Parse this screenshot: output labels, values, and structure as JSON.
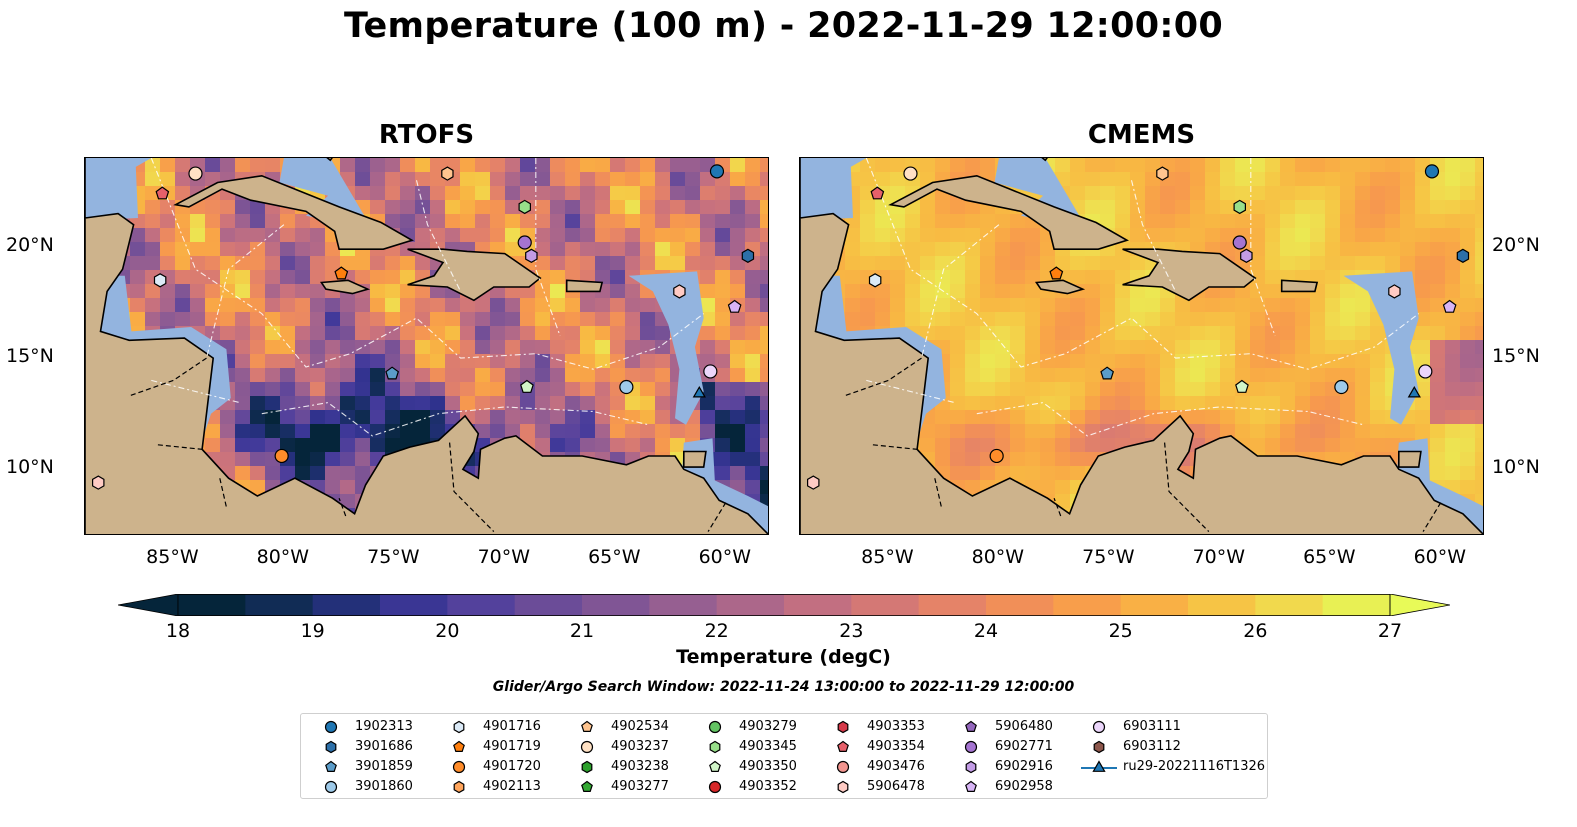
{
  "title": "Temperature (100 m) - 2022-11-29 12:00:00",
  "panels": [
    {
      "title": "RTOFS",
      "scheme": "rtofs"
    },
    {
      "title": "CMEMS",
      "scheme": "cmems"
    }
  ],
  "lon_ticks": [
    "85°W",
    "80°W",
    "75°W",
    "70°W",
    "65°W",
    "60°W"
  ],
  "lat_ticks": [
    "20°N",
    "15°N",
    "10°N"
  ],
  "map_extent": {
    "lon": [
      -89,
      -58
    ],
    "lat": [
      7,
      24
    ]
  },
  "colorbar": {
    "label": "Temperature (degC)",
    "min": 18,
    "max": 27,
    "ticks": [
      "18",
      "19",
      "20",
      "21",
      "22",
      "23",
      "24",
      "25",
      "26",
      "27"
    ],
    "colors": [
      "#05253a",
      "#0f2b50",
      "#1d2f6e",
      "#2f328d",
      "#433a9b",
      "#5a449c",
      "#6d4d98",
      "#7f5595",
      "#925d92",
      "#a5648d",
      "#b76b86",
      "#c9727d",
      "#d87a72",
      "#e68467",
      "#f08e5a",
      "#f79a4d",
      "#f9a846",
      "#f8b843",
      "#f5ca46",
      "#f0dc4f",
      "#e8f054"
    ],
    "under_color": "#05253a",
    "over_color": "#e8fa58"
  },
  "subtitle": "Glider/Argo Search Window: 2022-11-24 13:00:00 to 2022-11-29 12:00:00",
  "legend": [
    {
      "label": "1902313",
      "color": "#1f77b4",
      "marker": "circle"
    },
    {
      "label": "3901686",
      "color": "#2c6fa8",
      "marker": "hexagon"
    },
    {
      "label": "3901859",
      "color": "#5b9cc9",
      "marker": "pentagon"
    },
    {
      "label": "3901860",
      "color": "#9ecae9",
      "marker": "circle"
    },
    {
      "label": "4901716",
      "color": "#dbeaf7",
      "marker": "hexagon"
    },
    {
      "label": "4901719",
      "color": "#ff7f0e",
      "marker": "pentagon"
    },
    {
      "label": "4901720",
      "color": "#ff8c2a",
      "marker": "circle"
    },
    {
      "label": "4902113",
      "color": "#ffa55c",
      "marker": "hexagon"
    },
    {
      "label": "4902534",
      "color": "#ffc48f",
      "marker": "pentagon"
    },
    {
      "label": "4903237",
      "color": "#ffe1c4",
      "marker": "circle"
    },
    {
      "label": "4903238",
      "color": "#2ca02c",
      "marker": "hexagon"
    },
    {
      "label": "4903277",
      "color": "#33a833",
      "marker": "pentagon"
    },
    {
      "label": "4903279",
      "color": "#63c463",
      "marker": "circle"
    },
    {
      "label": "4903345",
      "color": "#98df8a",
      "marker": "hexagon"
    },
    {
      "label": "4903350",
      "color": "#d1f5c8",
      "marker": "pentagon"
    },
    {
      "label": "4903352",
      "color": "#d62728",
      "marker": "circle"
    },
    {
      "label": "4903353",
      "color": "#d63a4a",
      "marker": "hexagon"
    },
    {
      "label": "4903354",
      "color": "#e6606a",
      "marker": "pentagon"
    },
    {
      "label": "4903476",
      "color": "#f2958f",
      "marker": "circle"
    },
    {
      "label": "5906478",
      "color": "#ffcbc4",
      "marker": "hexagon"
    },
    {
      "label": "5906480",
      "color": "#9467bd",
      "marker": "pentagon"
    },
    {
      "label": "6902771",
      "color": "#a574d1",
      "marker": "circle"
    },
    {
      "label": "6902916",
      "color": "#c39ce6",
      "marker": "hexagon"
    },
    {
      "label": "6902958",
      "color": "#d7b4f5",
      "marker": "pentagon"
    },
    {
      "label": "6903111",
      "color": "#ecd6fb",
      "marker": "circle"
    },
    {
      "label": "6903112",
      "color": "#8c564b",
      "marker": "hexagon"
    },
    {
      "label": "ru29-20221116T1326",
      "color": "#1f77b4",
      "marker": "triangle"
    }
  ],
  "floats": [
    {
      "lon": -84.0,
      "lat": 23.3,
      "color": "#ffe1c4",
      "marker": "circle"
    },
    {
      "lon": -72.6,
      "lat": 23.3,
      "color": "#ffc48f",
      "marker": "hexagon"
    },
    {
      "lon": -60.4,
      "lat": 23.4,
      "color": "#1f77b4",
      "marker": "circle"
    },
    {
      "lon": -85.5,
      "lat": 22.4,
      "color": "#e6606a",
      "marker": "pentagon"
    },
    {
      "lon": -69.1,
      "lat": 21.8,
      "color": "#98df8a",
      "marker": "hexagon"
    },
    {
      "lon": -69.1,
      "lat": 20.2,
      "color": "#a574d1",
      "marker": "circle"
    },
    {
      "lon": -68.8,
      "lat": 19.6,
      "color": "#c39ce6",
      "marker": "hexagon"
    },
    {
      "lon": -59.0,
      "lat": 19.6,
      "color": "#2c6fa8",
      "marker": "hexagon"
    },
    {
      "lon": -85.6,
      "lat": 18.5,
      "color": "#dbeaf7",
      "marker": "hexagon"
    },
    {
      "lon": -77.4,
      "lat": 18.8,
      "color": "#ff7f0e",
      "marker": "pentagon"
    },
    {
      "lon": -62.1,
      "lat": 18.0,
      "color": "#ffcbc4",
      "marker": "hexagon"
    },
    {
      "lon": -59.6,
      "lat": 17.3,
      "color": "#d7b4f5",
      "marker": "pentagon"
    },
    {
      "lon": -75.1,
      "lat": 14.3,
      "color": "#5b9cc9",
      "marker": "pentagon"
    },
    {
      "lon": -69.0,
      "lat": 13.7,
      "color": "#d1f5c8",
      "marker": "pentagon"
    },
    {
      "lon": -64.5,
      "lat": 13.7,
      "color": "#9ecae9",
      "marker": "circle"
    },
    {
      "lon": -60.7,
      "lat": 14.4,
      "color": "#ecd6fb",
      "marker": "circle"
    },
    {
      "lon": -61.2,
      "lat": 13.4,
      "color": "#1f77b4",
      "marker": "triangle"
    },
    {
      "lon": -80.1,
      "lat": 10.6,
      "color": "#ff8c2a",
      "marker": "circle"
    },
    {
      "lon": -88.4,
      "lat": 9.4,
      "color": "#ffcbc4",
      "marker": "hexagon"
    }
  ]
}
